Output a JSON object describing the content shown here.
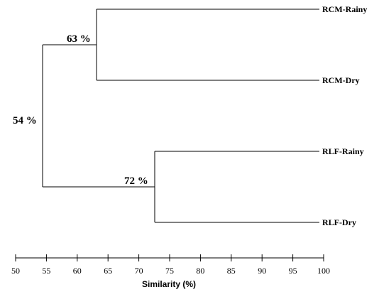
{
  "dendrogram": {
    "leaves": [
      {
        "label": "RCM-Rainy"
      },
      {
        "label": "RCM-Dry"
      },
      {
        "label": "RLF-Rainy"
      },
      {
        "label": "RLF-Dry"
      }
    ],
    "clusters": [
      {
        "label": "63 %",
        "similarity": 63,
        "members": [
          "RCM-Rainy",
          "RCM-Dry"
        ]
      },
      {
        "label": "72 %",
        "similarity": 72,
        "members": [
          "RLF-Rainy",
          "RLF-Dry"
        ]
      },
      {
        "label": "54 %",
        "similarity": 54,
        "members": [
          "63 %",
          "72 %"
        ]
      }
    ]
  },
  "axis": {
    "label": "Similarity (%)",
    "min": 50,
    "max": 100,
    "ticks": [
      "50",
      "55",
      "60",
      "65",
      "70",
      "75",
      "80",
      "85",
      "90",
      "95",
      "100"
    ]
  }
}
